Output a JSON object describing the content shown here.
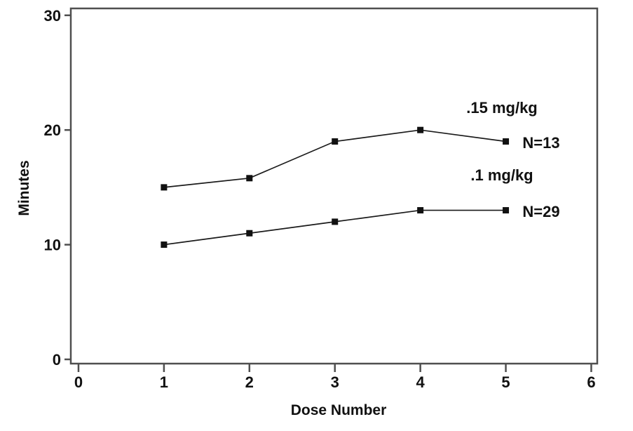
{
  "figure": {
    "background": "#ffffff"
  },
  "chart_data": {
    "type": "line",
    "title": "",
    "xlabel": "Dose Number",
    "ylabel": "Minutes",
    "x": [
      1,
      2,
      3,
      4,
      5
    ],
    "series": [
      {
        "name": ".15 mg/kg",
        "n_label": "N=13",
        "values": [
          15,
          15.8,
          19,
          20,
          19
        ]
      },
      {
        "name": ".1 mg/kg",
        "n_label": "N=29",
        "values": [
          10,
          11,
          12,
          13,
          13
        ]
      }
    ],
    "x_ticks": [
      0,
      1,
      2,
      3,
      4,
      5,
      6
    ],
    "y_ticks": [
      0,
      10,
      20,
      30
    ],
    "x_range": [
      -0.09,
      6.07
    ],
    "y_range": [
      -0.37,
      30.6
    ],
    "grid": false,
    "legend": "inline-annotations",
    "marker": "square",
    "marker_size": 9,
    "colors": {
      "line": "#1a1a1a",
      "marker": "#111111",
      "axis": "#4f4f4f",
      "text": "#111111"
    }
  }
}
